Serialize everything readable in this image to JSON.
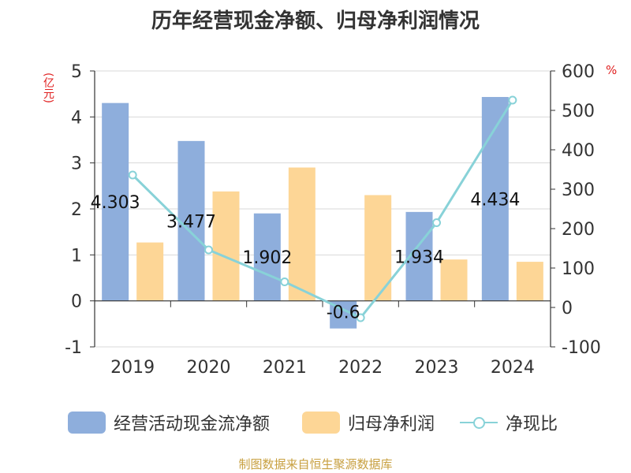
{
  "title": "历年经营现金净额、归母净利润情况",
  "unit_left": "(亿元)",
  "unit_right": "%",
  "source": "制图数据来自恒生聚源数据库",
  "colors": {
    "cash": "#8eaedc",
    "profit": "#fdd696",
    "ratio": "#88d2d8",
    "axis": "#333333",
    "grid": "#d8d8d8"
  },
  "chart_data": {
    "type": "bar",
    "title": "历年经营现金净额、归母净利润情况",
    "categories": [
      "2019",
      "2020",
      "2021",
      "2022",
      "2023",
      "2024"
    ],
    "series": [
      {
        "name": "经营活动现金流净额",
        "type": "bar",
        "axis": "left",
        "values": [
          4.303,
          3.477,
          1.902,
          -0.6,
          1.934,
          4.434
        ],
        "labels": [
          "4.303",
          "3.477",
          "1.902",
          "-0.6",
          "1.934",
          "4.434"
        ]
      },
      {
        "name": "归母净利润",
        "type": "bar",
        "axis": "left",
        "values": [
          1.27,
          2.38,
          2.9,
          2.3,
          0.9,
          0.85
        ]
      },
      {
        "name": "净现比",
        "type": "line",
        "axis": "right",
        "values": [
          336,
          146,
          65,
          -26,
          215,
          526
        ]
      }
    ],
    "yleft": {
      "label": "(亿元)",
      "min": -1,
      "max": 5,
      "ticks": [
        -1,
        0,
        1,
        2,
        3,
        4,
        5
      ]
    },
    "yright": {
      "label": "%",
      "min": -100,
      "max": 600,
      "ticks": [
        -100,
        0,
        100,
        200,
        300,
        400,
        500,
        600
      ]
    },
    "grid": true,
    "legend": "bottom"
  }
}
